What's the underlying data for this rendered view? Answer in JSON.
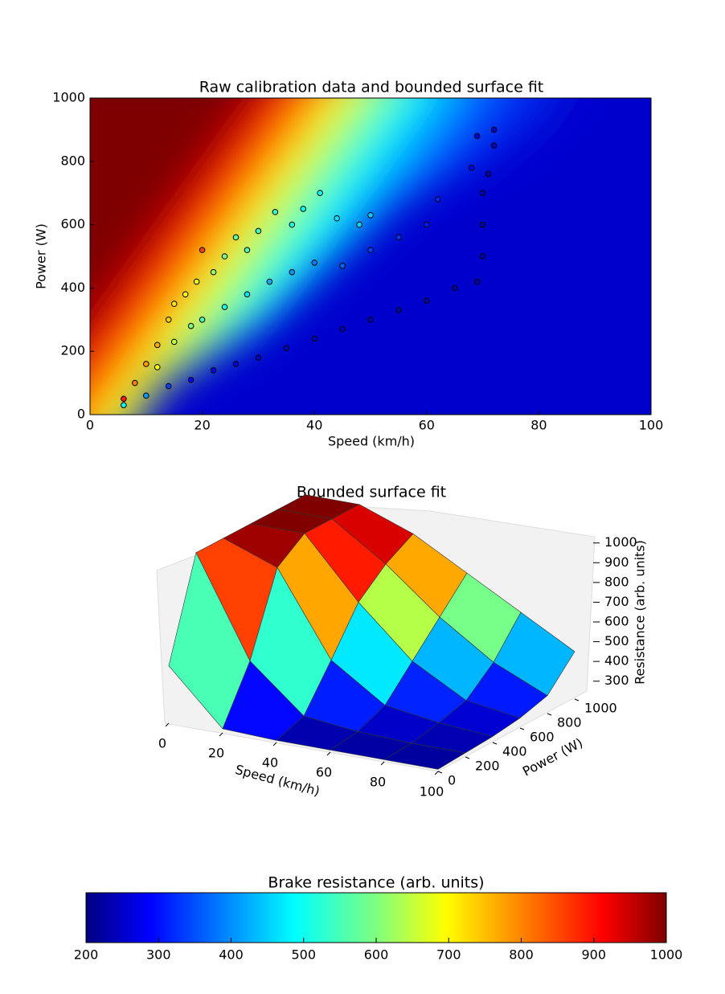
{
  "chart_data": [
    {
      "type": "scatter",
      "title": "Raw calibration data and bounded surface fit",
      "xlabel": "Speed (km/h)",
      "ylabel": "Power (W)",
      "xlim": [
        0,
        100
      ],
      "ylim": [
        0,
        1000
      ],
      "xticks": [
        0,
        20,
        40,
        60,
        80,
        100
      ],
      "yticks": [
        0,
        200,
        400,
        600,
        800,
        1000
      ],
      "x": [
        6,
        8,
        10,
        12,
        14,
        15,
        17,
        19,
        20,
        22,
        24,
        26,
        28,
        30,
        33,
        36,
        38,
        41,
        44,
        48,
        50,
        12,
        15,
        18,
        20,
        24,
        28,
        32,
        36,
        40,
        45,
        50,
        55,
        60,
        62,
        68,
        6,
        10,
        14,
        18,
        22,
        26,
        30,
        35,
        40,
        45,
        50,
        55,
        60,
        65,
        69,
        70,
        70,
        70,
        71,
        72,
        72,
        69
      ],
      "y": [
        50,
        100,
        160,
        220,
        300,
        350,
        380,
        420,
        520,
        450,
        500,
        560,
        520,
        580,
        640,
        600,
        650,
        700,
        620,
        600,
        630,
        150,
        230,
        280,
        300,
        340,
        380,
        420,
        450,
        480,
        470,
        520,
        560,
        600,
        680,
        780,
        30,
        60,
        90,
        110,
        140,
        160,
        180,
        210,
        240,
        270,
        300,
        330,
        360,
        400,
        420,
        500,
        600,
        700,
        760,
        850,
        900,
        880
      ],
      "values": [
        880,
        800,
        780,
        760,
        740,
        720,
        700,
        680,
        850,
        620,
        600,
        580,
        560,
        550,
        540,
        520,
        510,
        500,
        480,
        470,
        460,
        700,
        650,
        600,
        560,
        520,
        480,
        440,
        420,
        400,
        380,
        350,
        340,
        320,
        330,
        300,
        500,
        420,
        350,
        300,
        280,
        270,
        260,
        250,
        250,
        240,
        240,
        235,
        230,
        230,
        230,
        230,
        230,
        240,
        240,
        250,
        260,
        270
      ]
    },
    {
      "type": "surface",
      "title": "Bounded surface fit",
      "xlabel": "Speed (km/h)",
      "ylabel": "Power (W)",
      "zlabel": "Resistance (arb. units)",
      "xlim": [
        0,
        100
      ],
      "ylim": [
        0,
        1000
      ],
      "zlim": [
        250,
        1000
      ],
      "xticks": [
        0,
        20,
        40,
        60,
        80,
        100
      ],
      "yticks": [
        0,
        200,
        400,
        600,
        800,
        1000
      ],
      "zticks": [
        300,
        400,
        500,
        600,
        700,
        800,
        900,
        1000
      ],
      "x": [
        0,
        20,
        40,
        60,
        80,
        100
      ],
      "y": [
        0,
        200,
        400,
        600,
        800,
        1000
      ],
      "z": [
        [
          500,
          230,
          220,
          220,
          220,
          220
        ],
        [
          1000,
          500,
          270,
          240,
          230,
          230
        ],
        [
          1000,
          900,
          480,
          300,
          260,
          240
        ],
        [
          1000,
          1000,
          700,
          450,
          300,
          260
        ],
        [
          1000,
          1000,
          820,
          600,
          420,
          300
        ],
        [
          1000,
          1000,
          900,
          750,
          600,
          450
        ]
      ]
    },
    {
      "type": "colorbar",
      "title": "Brake resistance (arb. units)",
      "lim": [
        200,
        1000
      ],
      "ticks": [
        200,
        300,
        400,
        500,
        600,
        700,
        800,
        900,
        1000
      ]
    }
  ]
}
